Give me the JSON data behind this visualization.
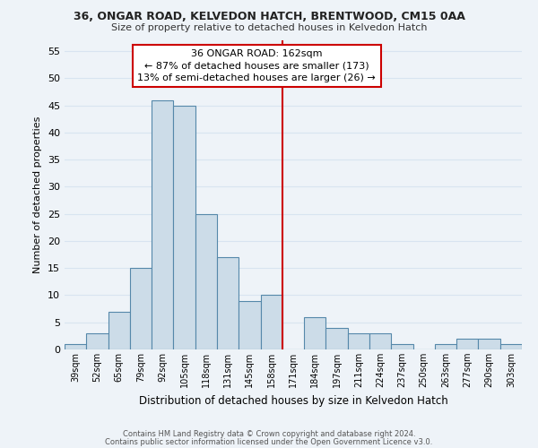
{
  "title1": "36, ONGAR ROAD, KELVEDON HATCH, BRENTWOOD, CM15 0AA",
  "title2": "Size of property relative to detached houses in Kelvedon Hatch",
  "xlabel": "Distribution of detached houses by size in Kelvedon Hatch",
  "ylabel": "Number of detached properties",
  "bin_labels": [
    "39sqm",
    "52sqm",
    "65sqm",
    "79sqm",
    "92sqm",
    "105sqm",
    "118sqm",
    "131sqm",
    "145sqm",
    "158sqm",
    "171sqm",
    "184sqm",
    "197sqm",
    "211sqm",
    "224sqm",
    "237sqm",
    "250sqm",
    "263sqm",
    "277sqm",
    "290sqm",
    "303sqm"
  ],
  "bar_values": [
    1,
    3,
    7,
    15,
    46,
    45,
    25,
    17,
    9,
    10,
    0,
    6,
    4,
    3,
    3,
    1,
    0,
    1,
    2,
    2,
    1
  ],
  "bar_color": "#ccdce8",
  "bar_edge_color": "#5588aa",
  "vline_x": 9.5,
  "vline_color": "#cc0000",
  "annotation_box_text": "36 ONGAR ROAD: 162sqm\n← 87% of detached houses are smaller (173)\n13% of semi-detached houses are larger (26) →",
  "ylim": [
    0,
    57
  ],
  "yticks": [
    0,
    5,
    10,
    15,
    20,
    25,
    30,
    35,
    40,
    45,
    50,
    55
  ],
  "footer1": "Contains HM Land Registry data © Crown copyright and database right 2024.",
  "footer2": "Contains public sector information licensed under the Open Government Licence v3.0.",
  "bg_color": "#eef3f8",
  "grid_color": "#d8e4f0"
}
